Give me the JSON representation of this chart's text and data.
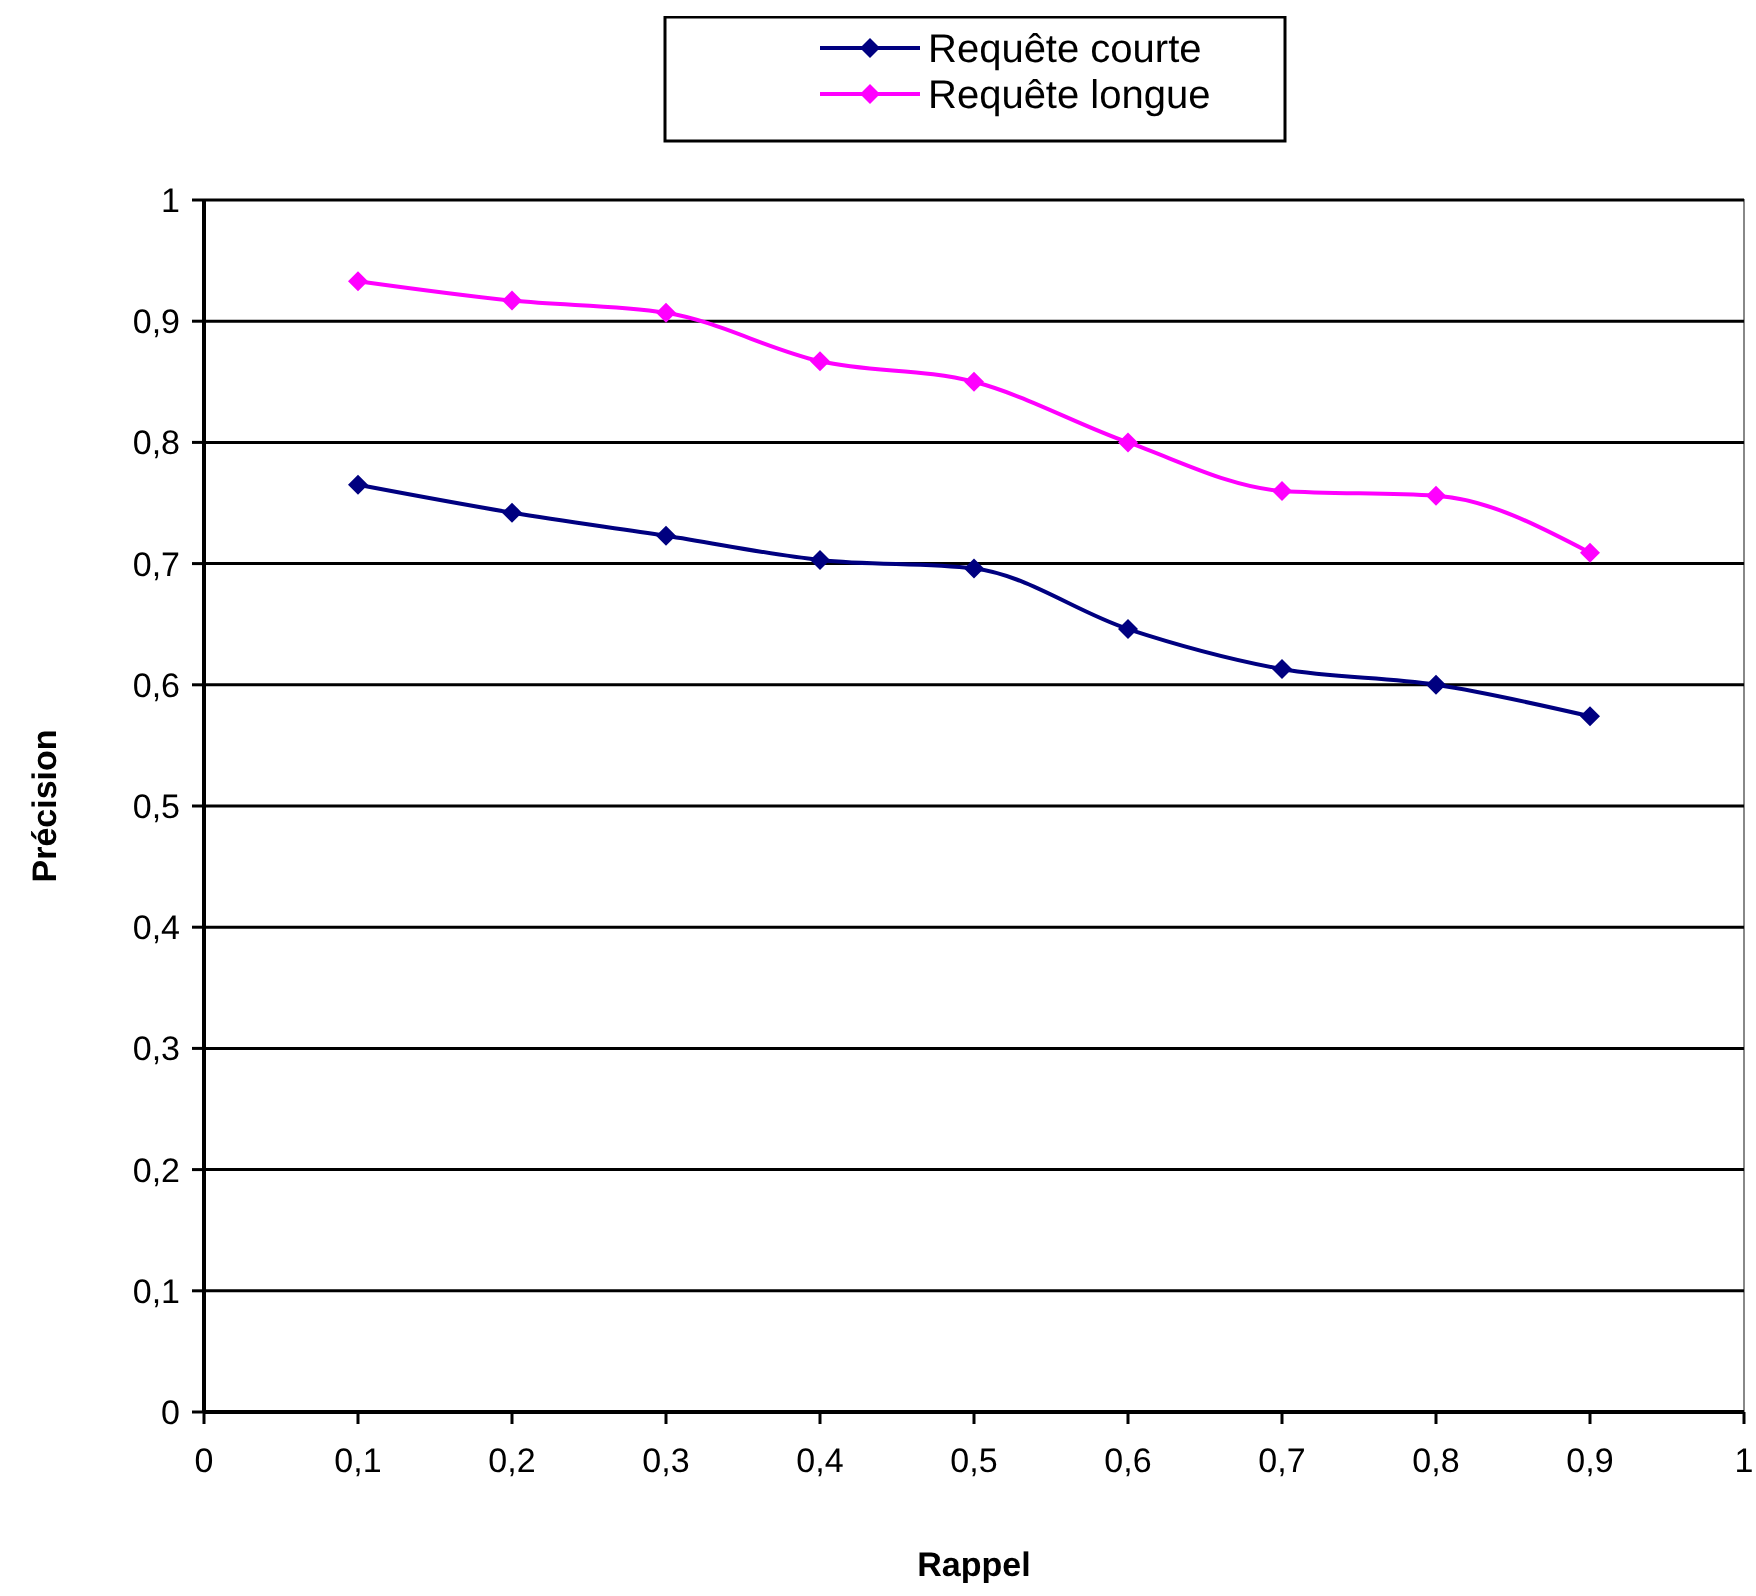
{
  "chart_data": {
    "type": "line",
    "xlabel": "Rappel",
    "ylabel": "Précision",
    "x": [
      0.1,
      0.2,
      0.3,
      0.4,
      0.5,
      0.6,
      0.7,
      0.8,
      0.9
    ],
    "series": [
      {
        "name": "Requête courte",
        "color": "#000080",
        "values": [
          0.765,
          0.742,
          0.723,
          0.703,
          0.696,
          0.646,
          0.613,
          0.6,
          0.574
        ]
      },
      {
        "name": "Requête longue",
        "color": "#ff00ff",
        "values": [
          0.933,
          0.917,
          0.907,
          0.867,
          0.85,
          0.8,
          0.76,
          0.756,
          0.709
        ]
      }
    ],
    "xlim": [
      0,
      1
    ],
    "ylim": [
      0,
      1
    ],
    "xticks": [
      0,
      {
        "value": 0.1,
        "label": "0,1"
      },
      {
        "value": 0.2,
        "label": "0,2"
      },
      {
        "value": 0.3,
        "label": "0,3"
      },
      {
        "value": 0.4,
        "label": "0,4"
      },
      {
        "value": 0.5,
        "label": "0,5"
      },
      {
        "value": 0.6,
        "label": "0,6"
      },
      {
        "value": 0.7,
        "label": "0,7"
      },
      {
        "value": 0.8,
        "label": "0,8"
      },
      {
        "value": 0.9,
        "label": "0,9"
      },
      1
    ],
    "yticks": [
      0,
      {
        "value": 0.1,
        "label": "0,1"
      },
      {
        "value": 0.2,
        "label": "0,2"
      },
      {
        "value": 0.3,
        "label": "0,3"
      },
      {
        "value": 0.4,
        "label": "0,4"
      },
      {
        "value": 0.5,
        "label": "0,5"
      },
      {
        "value": 0.6,
        "label": "0,6"
      },
      {
        "value": 0.7,
        "label": "0,7"
      },
      {
        "value": 0.8,
        "label": "0,8"
      },
      {
        "value": 0.9,
        "label": "0,9"
      },
      1
    ],
    "grid": "y",
    "legend": "top",
    "marker": "diamond",
    "line_style": "solid"
  }
}
